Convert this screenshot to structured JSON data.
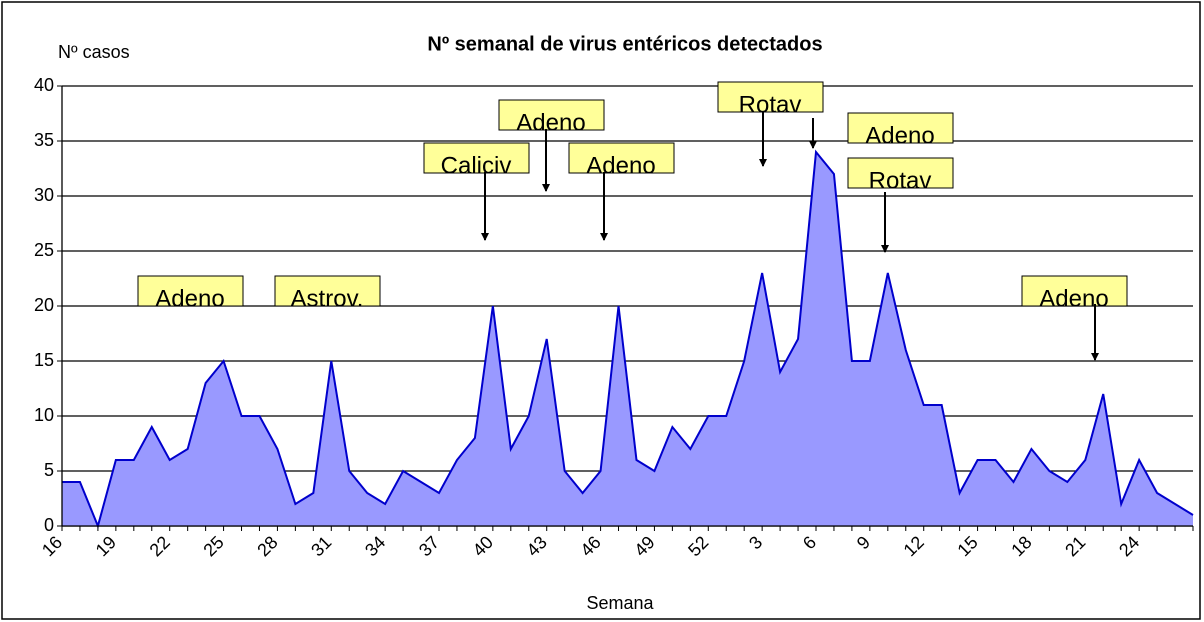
{
  "chart_data": {
    "type": "area",
    "title": "Nº semanal  de virus entéricos detectados",
    "y_label": "Nº casos",
    "x_label": "Semana",
    "categories": [
      "16",
      null,
      null,
      "19",
      null,
      null,
      "22",
      null,
      null,
      "25",
      null,
      null,
      "28",
      null,
      null,
      "31",
      null,
      null,
      "34",
      null,
      null,
      "37",
      null,
      null,
      "40",
      null,
      null,
      "43",
      null,
      null,
      "46",
      null,
      null,
      "49",
      null,
      null,
      "52",
      null,
      null,
      "3",
      null,
      null,
      "6",
      null,
      null,
      "9",
      null,
      null,
      "12",
      null,
      null,
      "15",
      null,
      null,
      "18",
      null,
      null,
      "21",
      null,
      null,
      "24",
      null,
      null,
      null
    ],
    "values": [
      4,
      4,
      0,
      6,
      6,
      9,
      6,
      7,
      13,
      15,
      10,
      10,
      7,
      2,
      3,
      15,
      5,
      3,
      2,
      5,
      4,
      3,
      6,
      8,
      20,
      7,
      10,
      17,
      5,
      3,
      5,
      20,
      6,
      5,
      9,
      7,
      10,
      10,
      15,
      23,
      14,
      17,
      34,
      32,
      15,
      15,
      23,
      16,
      11,
      11,
      3,
      6,
      6,
      4,
      7,
      5,
      4,
      6,
      12,
      2,
      6,
      3,
      2,
      1
    ],
    "color": "#9999ff",
    "line_color": "#0000cc",
    "ylim": [
      0,
      40
    ],
    "yticks": [
      0,
      5,
      10,
      15,
      20,
      25,
      30,
      35,
      40
    ],
    "grid": true,
    "annotations": [
      "Adeno",
      "Astrov.",
      "Caliciv",
      "Adeno",
      "Adeno",
      "Rotav",
      "Adeno",
      "Rotav",
      "Adeno"
    ]
  }
}
